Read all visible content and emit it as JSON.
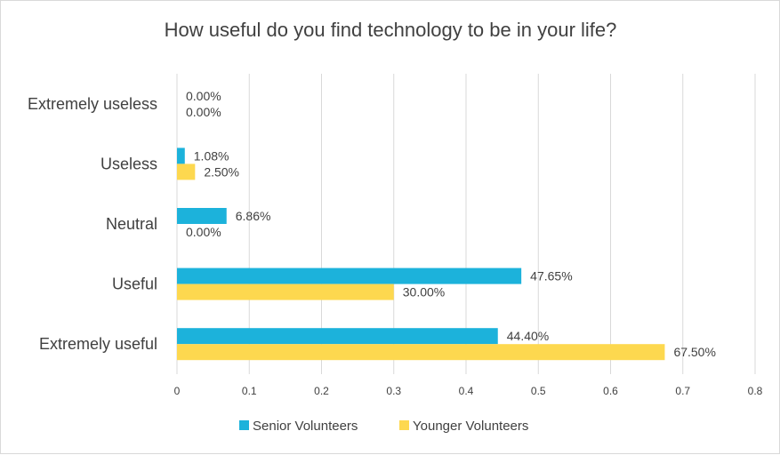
{
  "chart_data": {
    "type": "bar",
    "orientation": "horizontal",
    "title": "How useful do you find technology to be in your life?",
    "categories": [
      "Extremely useless",
      "Useless",
      "Neutral",
      "Useful",
      "Extremely useful"
    ],
    "series": [
      {
        "name": "Senior Volunteers",
        "color": "#1cb2db",
        "values": [
          0.0,
          0.0108,
          0.0686,
          0.4765,
          0.444
        ],
        "labels": [
          "0.00%",
          "1.08%",
          "6.86%",
          "47.65%",
          "44.40%"
        ]
      },
      {
        "name": "Younger Volunteers",
        "color": "#fdd84f",
        "values": [
          0.0,
          0.025,
          0.0,
          0.3,
          0.675
        ],
        "labels": [
          "0.00%",
          "2.50%",
          "0.00%",
          "30.00%",
          "67.50%"
        ]
      }
    ],
    "xlim": [
      0,
      0.8
    ],
    "x_ticks": [
      "0",
      "0.1",
      "0.2",
      "0.3",
      "0.4",
      "0.5",
      "0.6",
      "0.7",
      "0.8"
    ],
    "grid": true,
    "legend_position": "bottom"
  }
}
